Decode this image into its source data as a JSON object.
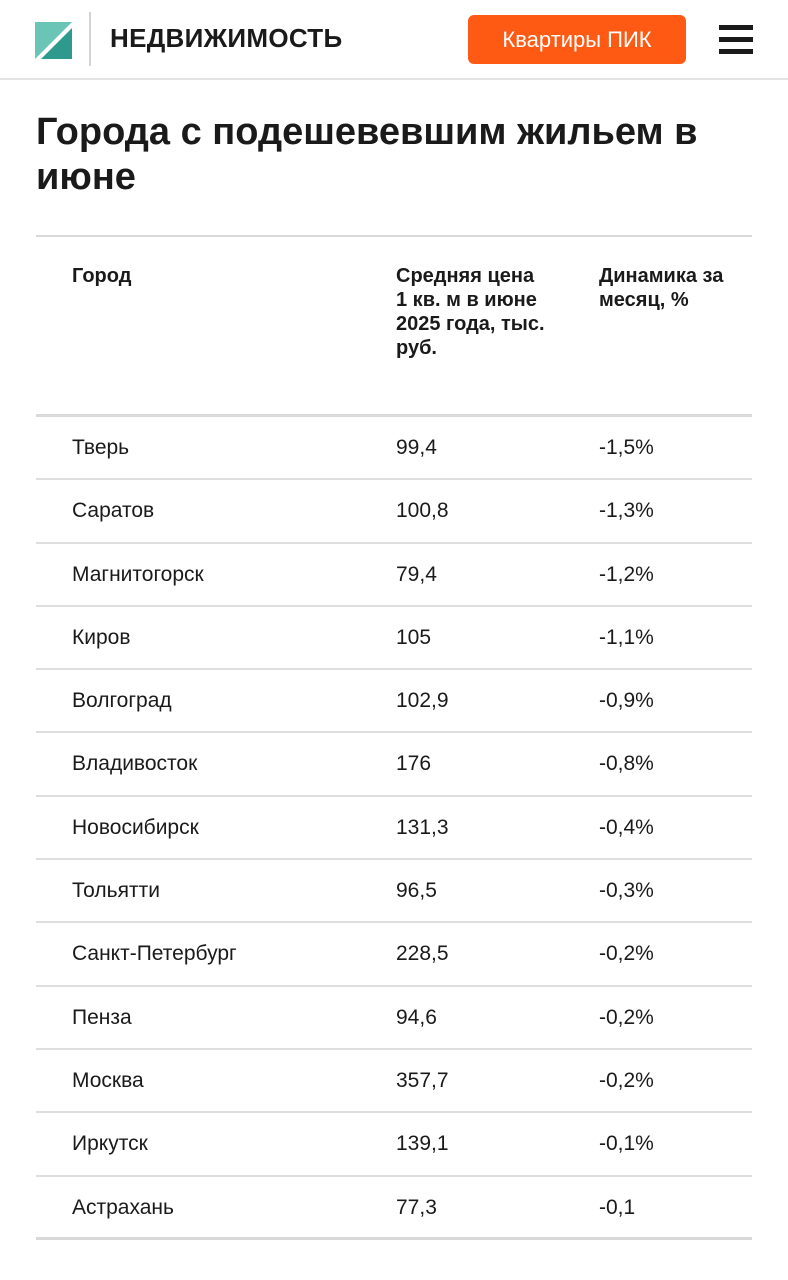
{
  "header": {
    "logo_text": "НЕДВИЖИМОСТЬ",
    "cta_label": "Квартиры ПИК",
    "accent_color": "#ff5a14",
    "logo_colors": [
      "#2e9a8e",
      "#6bc5b7",
      "#1a5a52"
    ]
  },
  "article": {
    "title": "Города с подешевевшим жильем в июне"
  },
  "table": {
    "columns": [
      "Город",
      "Средняя цена 1 кв. м в июне 2025 года, тыс. руб.",
      "Динамика за месяц, %"
    ],
    "rows": [
      [
        "Тверь",
        "99,4",
        "-1,5%"
      ],
      [
        "Саратов",
        "100,8",
        "-1,3%"
      ],
      [
        "Магнитогорск",
        "79,4",
        "-1,2%"
      ],
      [
        "Киров",
        "105",
        "-1,1%"
      ],
      [
        "Волгоград",
        "102,9",
        "-0,9%"
      ],
      [
        "Владивосток",
        "176",
        "-0,8%"
      ],
      [
        "Новосибирск",
        "131,3",
        "-0,4%"
      ],
      [
        "Тольятти",
        "96,5",
        "-0,3%"
      ],
      [
        "Санкт-Петербург",
        "228,5",
        "-0,2%"
      ],
      [
        "Пенза",
        "94,6",
        "-0,2%"
      ],
      [
        "Москва",
        "357,7",
        "-0,2%"
      ],
      [
        "Иркутск",
        "139,1",
        "-0,1%"
      ],
      [
        "Астрахань",
        "77,3",
        "-0,1"
      ]
    ]
  }
}
